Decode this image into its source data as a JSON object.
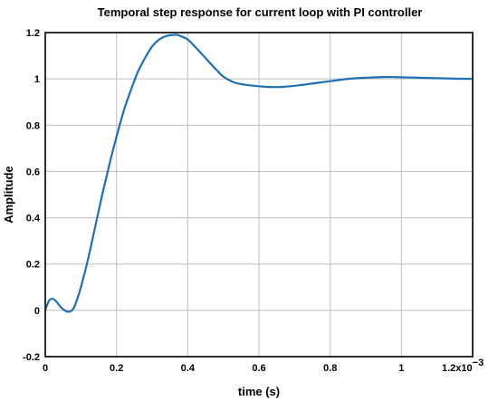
{
  "chart_data": {
    "type": "line",
    "title": "Temporal step response for current loop with PI controller",
    "xlabel": "time (s)",
    "ylabel": "Amplitude",
    "x_multiplier_label": "1.2x10",
    "x_multiplier_exp": "−3",
    "xlim": [
      0,
      1.2
    ],
    "ylim": [
      -0.2,
      1.2
    ],
    "x_ticks": [
      {
        "value": 0,
        "label": "0"
      },
      {
        "value": 0.2,
        "label": "0.2"
      },
      {
        "value": 0.4,
        "label": "0.4"
      },
      {
        "value": 0.6,
        "label": "0.6"
      },
      {
        "value": 0.8,
        "label": "0.8"
      },
      {
        "value": 1.0,
        "label": "1"
      }
    ],
    "y_ticks": [
      {
        "value": -0.2,
        "label": "-0.2"
      },
      {
        "value": 0,
        "label": "0"
      },
      {
        "value": 0.2,
        "label": "0.2"
      },
      {
        "value": 0.4,
        "label": "0.4"
      },
      {
        "value": 0.6,
        "label": "0.6"
      },
      {
        "value": 0.8,
        "label": "0.8"
      },
      {
        "value": 1.0,
        "label": "1"
      },
      {
        "value": 1.2,
        "label": "1.2"
      }
    ],
    "grid": true,
    "color": "#1f6fb4",
    "series": [
      {
        "x": [
          0,
          0.01,
          0.02,
          0.03,
          0.04,
          0.05,
          0.06,
          0.07,
          0.08,
          0.09,
          0.1,
          0.12,
          0.14,
          0.16,
          0.18,
          0.2,
          0.22,
          0.24,
          0.26,
          0.28,
          0.3,
          0.32,
          0.34,
          0.36,
          0.37,
          0.38,
          0.4,
          0.42,
          0.45,
          0.48,
          0.5,
          0.53,
          0.56,
          0.6,
          0.63,
          0.66,
          0.7,
          0.75,
          0.8,
          0.85,
          0.9,
          0.95,
          1.0,
          1.05,
          1.1,
          1.15,
          1.2
        ],
        "y": [
          0,
          0.04,
          0.05,
          0.04,
          0.02,
          0.005,
          -0.005,
          -0.005,
          0.01,
          0.05,
          0.1,
          0.22,
          0.36,
          0.5,
          0.63,
          0.75,
          0.86,
          0.95,
          1.03,
          1.09,
          1.14,
          1.17,
          1.185,
          1.19,
          1.19,
          1.185,
          1.17,
          1.14,
          1.09,
          1.04,
          1.01,
          0.985,
          0.975,
          0.968,
          0.965,
          0.965,
          0.97,
          0.98,
          0.99,
          1.0,
          1.005,
          1.008,
          1.007,
          1.005,
          1.003,
          1.001,
          1.0
        ]
      }
    ]
  }
}
